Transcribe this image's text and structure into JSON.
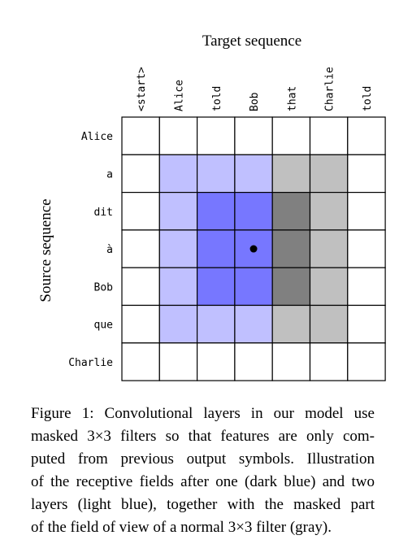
{
  "figure": {
    "target_title": "Target sequence",
    "source_title": "Source sequence",
    "target_tokens": [
      "<start>",
      "Alice",
      "told",
      "Bob",
      "that",
      "Charlie",
      "told"
    ],
    "source_tokens": [
      "Alice",
      "a",
      "dit",
      "à",
      "Bob",
      "que",
      "Charlie"
    ],
    "cell_fill": [
      [
        "none",
        "none",
        "none",
        "none",
        "none",
        "none",
        "none"
      ],
      [
        "none",
        "light",
        "light",
        "light",
        "gray",
        "gray",
        "none"
      ],
      [
        "none",
        "light",
        "dark",
        "dark",
        "dgray",
        "gray",
        "none"
      ],
      [
        "none",
        "light",
        "dark",
        "dark",
        "dgray",
        "gray",
        "none"
      ],
      [
        "none",
        "light",
        "dark",
        "dark",
        "dgray",
        "gray",
        "none"
      ],
      [
        "none",
        "light",
        "light",
        "light",
        "gray",
        "gray",
        "none"
      ],
      [
        "none",
        "none",
        "none",
        "none",
        "none",
        "none",
        "none"
      ]
    ],
    "marker": {
      "row": 3,
      "col": 3
    },
    "colors": {
      "light": "#c0c0ff",
      "dark": "#7777ff",
      "gray": "#c0c0c0",
      "dgray": "#808080",
      "none": "#ffffff",
      "grid": "#000000"
    }
  },
  "caption": {
    "lines": [
      "Figure 1: Convolutional layers in our model use",
      "masked 3×3 filters so that features are only com-",
      "puted from previous output symbols. Illustration",
      "of the receptive fields after one (dark blue) and two",
      "layers (light blue), together with the masked part",
      "of the field of view of a normal 3×3 filter (gray)."
    ]
  }
}
